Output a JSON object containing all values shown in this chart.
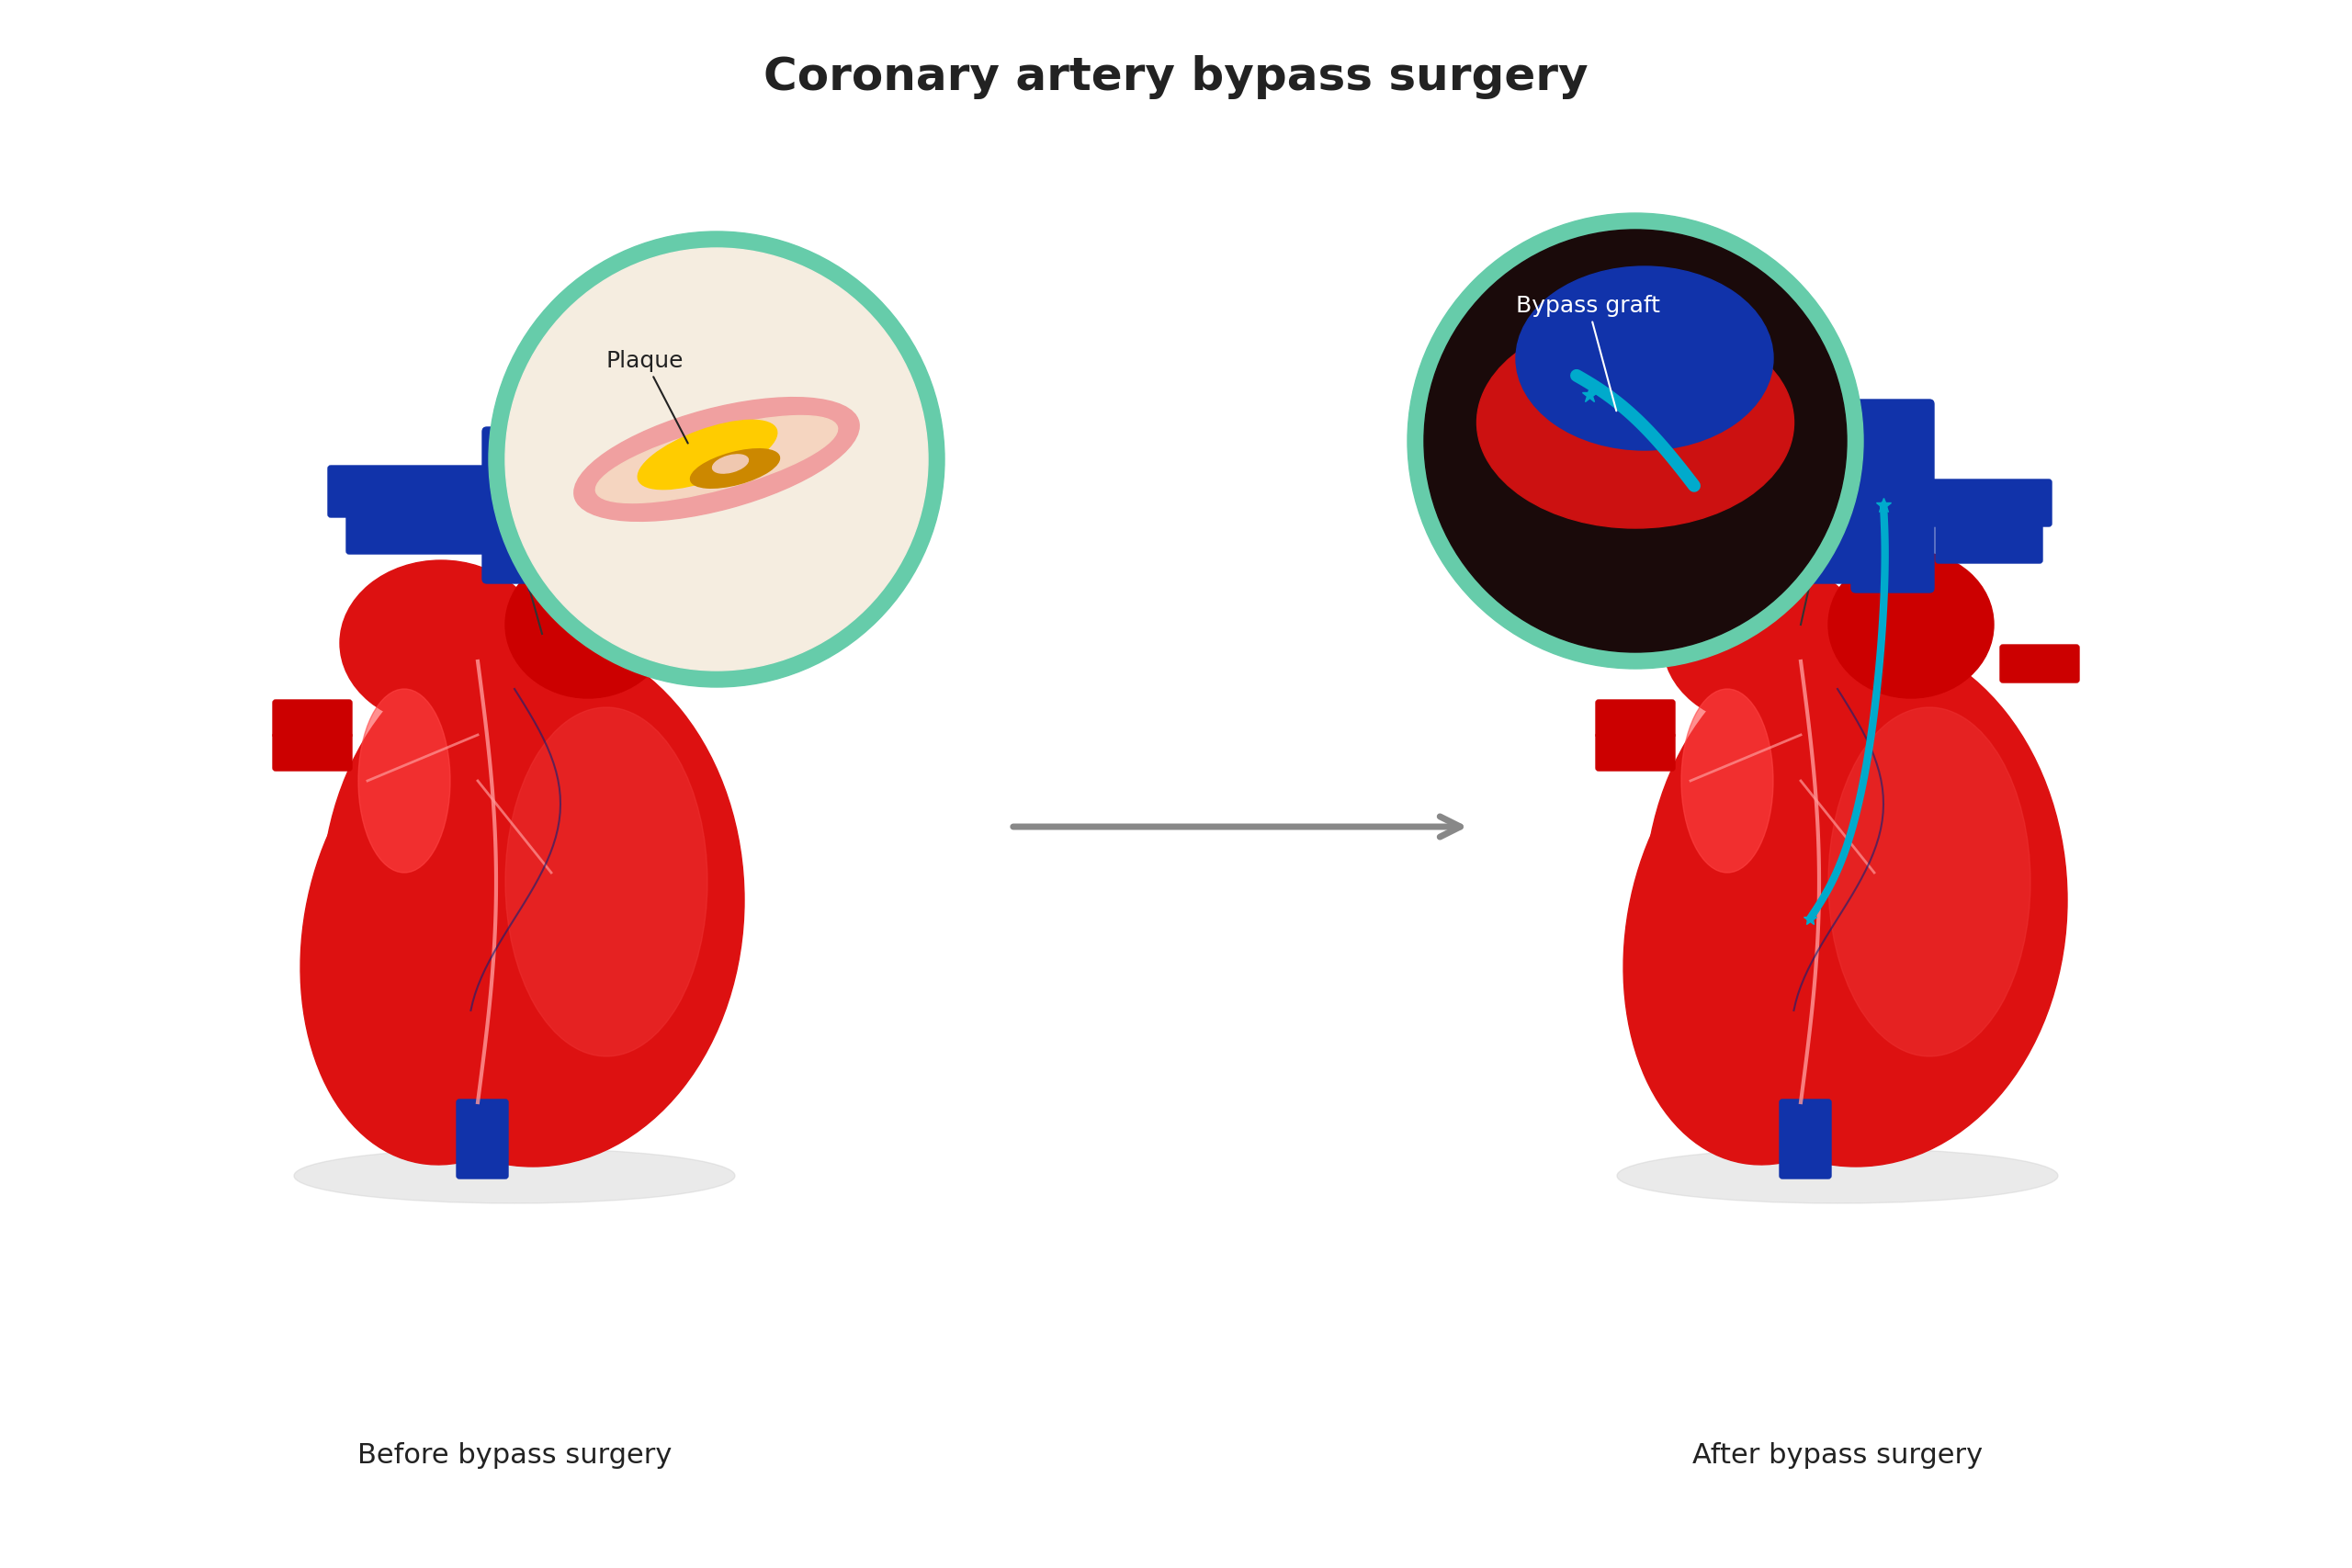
{
  "title": "Coronary artery bypass surgery",
  "title_fontsize": 36,
  "title_fontweight": "bold",
  "label_before": "Before bypass surgery",
  "label_after": "After bypass surgery",
  "label_fontsize": 22,
  "plaque_label": "Plaque",
  "bypass_label": "Bypass graft",
  "background_color": "#ffffff",
  "heart_red_dark": "#cc0000",
  "heart_red_mid": "#dd1111",
  "heart_red_light": "#ee3333",
  "heart_red_bright": "#ff4444",
  "artery_blue": "#1133aa",
  "artery_blue_dark": "#0a1f77",
  "artery_pink": "#ff9999",
  "vein_blue_dark": "#1a2080",
  "bypass_cyan": "#00aacc",
  "plaque_yellow": "#ffcc00",
  "plaque_dark": "#cc8800",
  "magnify_teal": "#66ccaa",
  "magnify_bg": "#f5ede0",
  "arrow_gray": "#888888",
  "shadow_gray": "#cccccc",
  "text_color": "#222222"
}
